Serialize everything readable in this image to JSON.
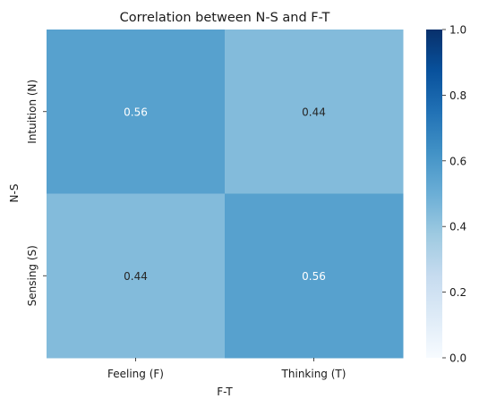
{
  "chart_data": {
    "type": "heatmap",
    "title": "Correlation between N-S and F-T",
    "xlabel": "F-T",
    "ylabel": "N-S",
    "x_categories": [
      "Feeling (F)",
      "Thinking (T)"
    ],
    "y_categories": [
      "Intuition (N)",
      "Sensing (S)"
    ],
    "values": [
      [
        0.56,
        0.44
      ],
      [
        0.44,
        0.56
      ]
    ],
    "annotations": [
      [
        "0.56",
        "0.44"
      ],
      [
        "0.44",
        "0.56"
      ]
    ],
    "colormap": "Blues",
    "vmin": 0.0,
    "vmax": 1.0,
    "colorbar_ticks": [
      "0.0",
      "0.2",
      "0.4",
      "0.6",
      "0.8",
      "1.0"
    ],
    "colorbar_tick_values": [
      0.0,
      0.2,
      0.4,
      0.6,
      0.8,
      1.0
    ]
  }
}
